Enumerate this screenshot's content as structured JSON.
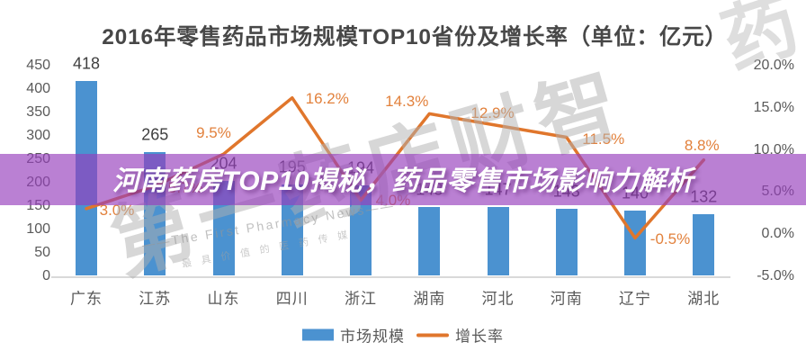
{
  "banner": {
    "text": "河南药房TOP10揭秘，药品零售市场影响力解析",
    "background_color": "#963EBC",
    "background_opacity": 0.66,
    "text_color": "#ffffff"
  },
  "watermark": {
    "brand_large": "第一药店财智",
    "corner_char": "药",
    "tagline": "——The First Pharmacy News——",
    "tagline_small": "最具价值的医药传媒"
  },
  "chart_data": {
    "type": "bar",
    "combo": "bar+line",
    "title": "2016年零售药品市场规模TOP10省份及增长率（单位：亿元）",
    "categories": [
      "广东",
      "江苏",
      "山东",
      "四川",
      "浙江",
      "湖南",
      "河北",
      "河南",
      "辽宁",
      "湖北"
    ],
    "series": [
      {
        "name": "市场规模",
        "type": "bar",
        "axis": "left",
        "color": "#4b92d0",
        "values": [
          418,
          265,
          204,
          195,
          194,
          148,
          147,
          143,
          140,
          132
        ],
        "labels": [
          "418",
          "265",
          "204",
          "195",
          "194",
          "148",
          "147",
          "143",
          "140",
          "132"
        ]
      },
      {
        "name": "增长率",
        "type": "line",
        "axis": "right",
        "color": "#e0762c",
        "label_color": "#e2813c",
        "values": [
          3.0,
          5.7,
          9.5,
          16.2,
          4.0,
          14.3,
          12.9,
          11.5,
          -0.5,
          8.8
        ],
        "labels": [
          "3.0%",
          "5.7%",
          "9.5%",
          "16.2%",
          "4.0%",
          "14.3%",
          "12.9%",
          "11.5%",
          "-0.5%",
          "8.8%"
        ]
      }
    ],
    "left_axis": {
      "min": 0,
      "max": 450,
      "step": 50,
      "ticks": [
        "450",
        "400",
        "350",
        "300",
        "250",
        "200",
        "150",
        "100",
        "50",
        "0"
      ]
    },
    "right_axis": {
      "min": -5,
      "max": 20,
      "step": 5,
      "ticks": [
        "20.0%",
        "15.0%",
        "10.0%",
        "5.0%",
        "0.0%",
        "-5.0%"
      ]
    },
    "legend": [
      {
        "label": "市场规模",
        "swatch": "bar"
      },
      {
        "label": "增长率",
        "swatch": "line"
      }
    ],
    "grid": false,
    "legend_position": "bottom-center"
  }
}
